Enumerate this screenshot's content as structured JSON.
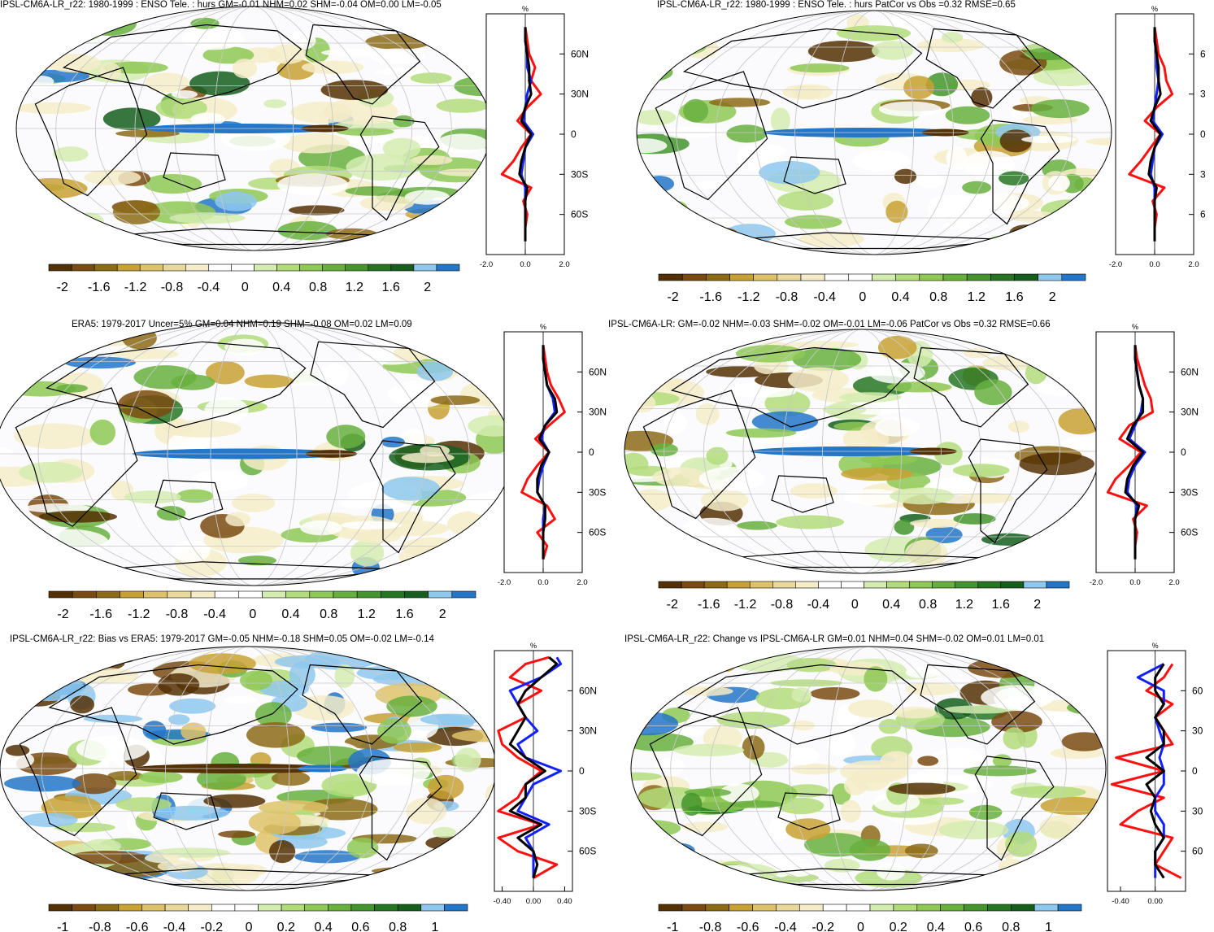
{
  "colors": {
    "ocean": "#fbfbfd",
    "coast": "#000000",
    "grid": "#c8c8c8",
    "zonal_red": "#ff1010",
    "zonal_blue": "#1020ff",
    "zonal_black": "#000000"
  },
  "colorbar_palette": [
    "#543005",
    "#7a4a12",
    "#8c6a16",
    "#c8a134",
    "#dec26a",
    "#e9d89b",
    "#f4ecc8",
    "#ffffff",
    "#ffffff",
    "#d4ecb0",
    "#b2dc7a",
    "#8ec855",
    "#67b03e",
    "#44952d",
    "#267523",
    "#155e1e",
    "#8ec8ef",
    "#2376c8"
  ],
  "chart_data": [
    {
      "type": "heatmap",
      "title": "IPSL-CM6A-LR_r22: 1980-1999 : ENSO Tele. : hurs GM=-0.01 NHM=0.02 SHM=-0.04 OM=0.00 LM=-0.05",
      "colorbar_ticks": [
        "-2",
        "-1.6",
        "-1.2",
        "-0.8",
        "-0.4",
        "0",
        "0.4",
        "0.8",
        "1.2",
        "1.6",
        "2"
      ],
      "zonal_mean": {
        "unit_label": "%",
        "x_ticks": [
          "-2.0",
          "0.0",
          "2.0"
        ],
        "y_ticks": [
          "60N",
          "30N",
          "0",
          "30S",
          "60S"
        ],
        "xlim": [
          -2,
          2
        ],
        "ylim": [
          -90,
          90
        ],
        "lat": [
          80,
          70,
          60,
          50,
          40,
          30,
          20,
          10,
          0,
          -10,
          -20,
          -30,
          -40,
          -50,
          -60,
          -70,
          -80
        ],
        "red": [
          0,
          0.1,
          0.2,
          0.5,
          0.3,
          0.8,
          0.1,
          -0.4,
          0.3,
          -0.2,
          -0.6,
          -1.2,
          0.3,
          -0.1,
          0.1,
          0,
          0
        ],
        "blue": [
          0,
          0,
          0.1,
          0.1,
          0.3,
          0.1,
          0,
          -0.1,
          0.4,
          0,
          -0.1,
          -0.2,
          0,
          0,
          0,
          0,
          0
        ],
        "black": [
          0,
          0,
          0.1,
          0.2,
          0.2,
          0.3,
          0,
          -0.2,
          0.3,
          0,
          -0.2,
          -0.3,
          0.1,
          0,
          0,
          0,
          0
        ]
      }
    },
    {
      "type": "heatmap",
      "title": "IPSL-CM6A-LR_r22: 1980-1999 : ENSO Tele. : hurs PatCor vs Obs =0.32 RMSE=0.65",
      "colorbar_ticks": [
        "-2",
        "-1.6",
        "-1.2",
        "-0.8",
        "-0.4",
        "0",
        "0.4",
        "0.8",
        "1.2",
        "1.6",
        "2"
      ],
      "zonal_mean": {
        "unit_label": "%",
        "x_ticks": [
          "-2.0",
          "0.0",
          "2.0"
        ],
        "y_ticks": [
          "6",
          "3",
          "0",
          "3",
          "6"
        ],
        "xlim": [
          -2,
          2
        ],
        "ylim": [
          -90,
          90
        ],
        "lat": [
          80,
          70,
          60,
          50,
          40,
          30,
          20,
          10,
          0,
          -10,
          -20,
          -30,
          -40,
          -50,
          -60,
          -70,
          -80
        ],
        "red": [
          0,
          0.1,
          0.2,
          0.5,
          0.6,
          0.9,
          0.1,
          -0.5,
          0.3,
          -0.2,
          -0.7,
          -1.3,
          0.5,
          -0.1,
          0.1,
          0,
          0
        ],
        "blue": [
          0,
          0,
          0.1,
          0.1,
          0.2,
          0.1,
          0,
          -0.1,
          0.4,
          0,
          -0.1,
          -0.2,
          0,
          0,
          0,
          0,
          0
        ],
        "black": [
          0,
          0,
          0.1,
          0.2,
          0.2,
          0.3,
          0,
          -0.2,
          0.3,
          0,
          -0.2,
          -0.3,
          0.1,
          0,
          0,
          0,
          0
        ]
      }
    },
    {
      "type": "heatmap",
      "title": "ERA5: 1979-2017 Uncer=5% GM=0.04 NHM=0.19 SHM=-0.08 OM=0.02 LM=0.09",
      "colorbar_ticks": [
        "-2",
        "-1.6",
        "-1.2",
        "-0.8",
        "-0.4",
        "0",
        "0.4",
        "0.8",
        "1.2",
        "1.6",
        "2"
      ],
      "zonal_mean": {
        "unit_label": "%",
        "x_ticks": [
          "-2.0",
          "0.0",
          "2.0"
        ],
        "y_ticks": [
          "60N",
          "30N",
          "0",
          "30S",
          "60S"
        ],
        "xlim": [
          -2,
          2
        ],
        "ylim": [
          -90,
          90
        ],
        "lat": [
          80,
          70,
          60,
          50,
          40,
          30,
          20,
          10,
          0,
          -10,
          -20,
          -30,
          -40,
          -50,
          -60,
          -70,
          -80
        ],
        "red": [
          0,
          0.1,
          0.2,
          0.4,
          0.8,
          1.1,
          0.3,
          -0.4,
          0.3,
          -0.3,
          -0.8,
          -1.1,
          0.2,
          0.6,
          -0.3,
          0.2,
          0
        ],
        "blue": [
          0,
          0,
          0.1,
          0.2,
          0.5,
          0.6,
          0.1,
          -0.1,
          0.3,
          0,
          -0.2,
          -0.3,
          0.1,
          0,
          0,
          0,
          0
        ],
        "black": [
          0,
          0,
          0.1,
          0.2,
          0.6,
          0.7,
          0.1,
          -0.2,
          0.3,
          -0.1,
          -0.3,
          -0.3,
          0.1,
          0.1,
          0,
          0,
          0
        ]
      }
    },
    {
      "type": "heatmap",
      "title": "IPSL-CM6A-LR: GM=-0.02 NHM=-0.03 SHM=-0.02 OM=-0.01 LM=-0.06 PatCor vs Obs =0.32 RMSE=0.66",
      "colorbar_ticks": [
        "-2",
        "-1.6",
        "-1.2",
        "-0.8",
        "-0.4",
        "0",
        "0.4",
        "0.8",
        "1.2",
        "1.6",
        "2"
      ],
      "zonal_mean": {
        "unit_label": "%",
        "x_ticks": [
          "-2.0",
          "0.0",
          "2.0"
        ],
        "y_ticks": [
          "60N",
          "30N",
          "0",
          "30S",
          "60S"
        ],
        "xlim": [
          -2,
          2
        ],
        "ylim": [
          -90,
          90
        ],
        "lat": [
          80,
          70,
          60,
          50,
          40,
          30,
          20,
          10,
          0,
          -10,
          -20,
          -30,
          -40,
          -50,
          -60,
          -70,
          -80
        ],
        "red": [
          0,
          0.1,
          0.3,
          0.5,
          0.8,
          0.9,
          -0.3,
          -0.8,
          0.3,
          -0.3,
          -1.0,
          -1.4,
          0.6,
          -0.1,
          0.1,
          0,
          0
        ],
        "blue": [
          0,
          0,
          0.1,
          0.2,
          0.4,
          0.3,
          0,
          -0.3,
          0.5,
          0,
          -0.3,
          -0.4,
          0.1,
          0,
          0,
          0,
          0
        ],
        "black": [
          0,
          0,
          0.1,
          0.2,
          0.4,
          0.4,
          -0.1,
          -0.4,
          0.4,
          -0.1,
          -0.4,
          -0.5,
          0.2,
          0,
          0,
          0,
          0
        ]
      }
    },
    {
      "type": "heatmap",
      "title": "IPSL-CM6A-LR_r22: Bias vs ERA5: 1979-2017 GM=-0.05 NHM=-0.18 SHM=0.05 OM=-0.02 LM=-0.14",
      "colorbar_ticks": [
        "-1",
        "-0.8",
        "-0.6",
        "-0.4",
        "-0.2",
        "0",
        "0.2",
        "0.4",
        "0.6",
        "0.8",
        "1"
      ],
      "zonal_mean": {
        "unit_label": "%",
        "x_ticks": [
          "-0.40",
          "0.00",
          "0.40"
        ],
        "y_ticks": [
          "60N",
          "30N",
          "0",
          "30S",
          "60S"
        ],
        "xlim": [
          -0.5,
          0.5
        ],
        "ylim": [
          -90,
          90
        ],
        "lat": [
          85,
          80,
          70,
          60,
          50,
          40,
          30,
          20,
          10,
          0,
          -10,
          -20,
          -30,
          -40,
          -50,
          -60,
          -70,
          -80
        ],
        "red": [
          0.2,
          -0.1,
          -0.3,
          0.1,
          -0.2,
          -0.1,
          -0.45,
          -0.4,
          -0.2,
          0.1,
          -0.1,
          -0.2,
          -0.45,
          0.1,
          -0.45,
          -0.2,
          0.3,
          0
        ],
        "blue": [
          0.3,
          0.35,
          0.1,
          -0.3,
          -0.2,
          -0.1,
          0.05,
          -0.2,
          -0.1,
          0.35,
          0,
          -0.1,
          -0.2,
          0.2,
          -0.1,
          0,
          0,
          0
        ],
        "black": [
          0.2,
          0.3,
          0.1,
          -0.1,
          -0.2,
          -0.1,
          -0.2,
          -0.3,
          -0.1,
          0.15,
          -0.1,
          -0.1,
          -0.3,
          0.1,
          -0.2,
          0,
          0.05,
          0
        ]
      }
    },
    {
      "type": "heatmap",
      "title": "IPSL-CM6A-LR_r22: Change vs IPSL-CM6A-LR GM=0.01 NHM=0.04 SHM=-0.02 OM=0.01 LM=0.01",
      "colorbar_ticks": [
        "-1",
        "-0.8",
        "-0.6",
        "-0.4",
        "-0.2",
        "0",
        "0.2",
        "0.4",
        "0.6",
        "0.8",
        "1"
      ],
      "zonal_mean": {
        "unit_label": "%",
        "x_ticks": [
          "-0.40",
          "0.00"
        ],
        "y_ticks": [
          "60",
          "30",
          "0",
          "30",
          "60"
        ],
        "xlim": [
          -0.55,
          0.35
        ],
        "ylim": [
          -90,
          90
        ],
        "lat": [
          80,
          70,
          60,
          50,
          40,
          30,
          20,
          10,
          0,
          -10,
          -20,
          -30,
          -40,
          -50,
          -60,
          -70,
          -80
        ],
        "red": [
          0.2,
          0.1,
          -0.1,
          0.2,
          0,
          0.1,
          0.2,
          -0.45,
          0.1,
          -0.5,
          0.1,
          -0.2,
          -0.4,
          0.2,
          0.1,
          0,
          0.3
        ],
        "blue": [
          0.1,
          -0.2,
          0.1,
          0.1,
          0,
          0.05,
          0.1,
          0.05,
          0.1,
          0.1,
          0,
          0,
          0.1,
          0.1,
          0,
          0,
          0
        ],
        "black": [
          0.1,
          0,
          0,
          0.1,
          0,
          0.1,
          0.1,
          -0.1,
          0.1,
          -0.1,
          0,
          -0.05,
          0,
          0.1,
          0,
          0,
          0.1
        ]
      }
    }
  ]
}
